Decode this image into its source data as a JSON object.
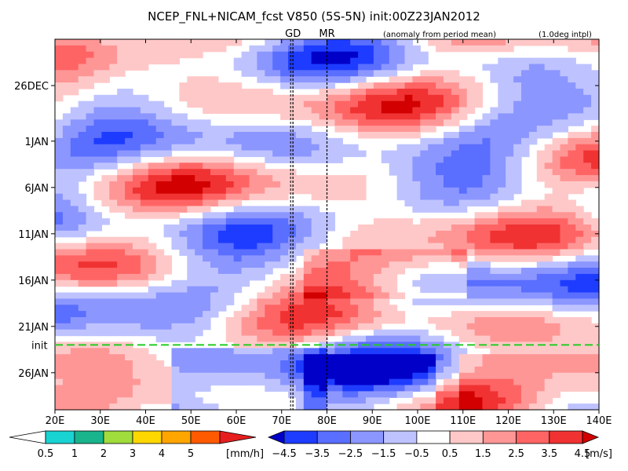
{
  "chart_data": {
    "type": "heatmap",
    "title": "NCEP_FNL+NICAM_fcst V850 (5S-5N) init:00Z23JAN2012",
    "subtitle_left": "(anomaly from period mean)",
    "subtitle_right": "(1.0deg intpl)",
    "region_markers": [
      {
        "label": "GD",
        "lon": 72.5,
        "color": "#e00000"
      },
      {
        "label": "MR",
        "lon": 80.0,
        "color": "#e00000"
      }
    ],
    "init_label": "init",
    "init_color": "#22cc22",
    "xlim": [
      20,
      140
    ],
    "x_ticks": [
      "20E",
      "30E",
      "40E",
      "50E",
      "60E",
      "70E",
      "80E",
      "90E",
      "100E",
      "110E",
      "120E",
      "130E",
      "140E"
    ],
    "x_tick_values": [
      20,
      30,
      40,
      50,
      60,
      70,
      80,
      90,
      100,
      110,
      120,
      130,
      140
    ],
    "y_ticks": [
      "26DEC",
      "1JAN",
      "6JAN",
      "11JAN",
      "16JAN",
      "21JAN",
      "26JAN"
    ],
    "y_tick_days": [
      4,
      10,
      15,
      20,
      25,
      30,
      35
    ],
    "ylim_days": [
      -1,
      39
    ],
    "init_day": 32,
    "x_reversed": false,
    "y_reversed": true,
    "colorbar_rain": {
      "unit": "[mm/h]",
      "tick_labels": [
        "0.5",
        "1",
        "2",
        "3",
        "4",
        "5"
      ],
      "colors": [
        "#ffffff",
        "#19d2d2",
        "#19b48c",
        "#a0dc3c",
        "#ffd700",
        "#ffa500",
        "#ff5a00",
        "#e61e1e"
      ]
    },
    "colorbar_wind": {
      "unit": "[m/s]",
      "tick_labels": [
        "−4.5",
        "−3.5",
        "−2.5",
        "−1.5",
        "−0.5",
        "0.5",
        "1.5",
        "2.5",
        "3.5",
        "4.5"
      ],
      "colors": [
        "#0000c8",
        "#1e3cff",
        "#5a6eff",
        "#8c96ff",
        "#bec3ff",
        "#ffffff",
        "#ffc8c8",
        "#ff9696",
        "#ff6464",
        "#f03232",
        "#d20000"
      ]
    }
  }
}
